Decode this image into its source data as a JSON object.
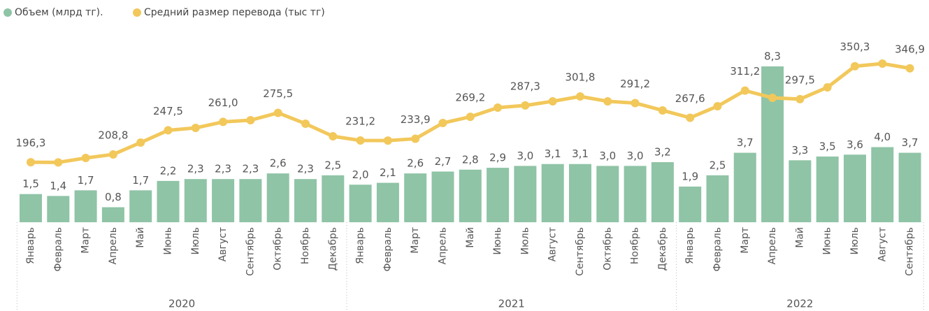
{
  "chart_data": {
    "type": "bar_line",
    "categories": [
      "Январь",
      "Февраль",
      "Март",
      "Апрель",
      "Май",
      "Июнь",
      "Июль",
      "Август",
      "Сентябрь",
      "Октябрь",
      "Ноябрь",
      "Декабрь",
      "Январь",
      "Февраль",
      "Март",
      "Апрель",
      "Май",
      "Июнь",
      "Июль",
      "Август",
      "Сентябрь",
      "Октябрь",
      "Ноябрь",
      "Декабрь",
      "Январь",
      "Февраль",
      "Март",
      "Апрель",
      "Май",
      "Июнь",
      "Июль",
      "Август",
      "Сентябрь"
    ],
    "years": [
      "2020",
      "2021",
      "2022"
    ],
    "series": [
      {
        "name": "Объем (млрд тг).",
        "type": "bar",
        "color": "#8fc4a6",
        "values": [
          1.5,
          1.4,
          1.7,
          0.8,
          1.7,
          2.2,
          2.3,
          2.3,
          2.3,
          2.6,
          2.3,
          2.5,
          2.0,
          2.1,
          2.6,
          2.7,
          2.8,
          2.9,
          3.0,
          3.1,
          3.1,
          3.0,
          3.0,
          3.2,
          1.9,
          2.5,
          3.7,
          8.3,
          3.3,
          3.5,
          3.6,
          4.0,
          3.7
        ],
        "value_labels": [
          "1,5",
          "1,4",
          "1,7",
          "0,8",
          "1,7",
          "2,2",
          "2,3",
          "2,3",
          "2,3",
          "2,6",
          "2,3",
          "2,5",
          "2,0",
          "2,1",
          "2,6",
          "2,7",
          "2,8",
          "2,9",
          "3,0",
          "3,1",
          "3,1",
          "3,0",
          "3,0",
          "3,2",
          "1,9",
          "2,5",
          "3,7",
          "8,3",
          "3,3",
          "3,5",
          "3,6",
          "4,0",
          "3,7"
        ]
      },
      {
        "name": "Средний размер перевода (тыс тг)",
        "type": "line",
        "axis": "y2",
        "color": "#f2c85b",
        "values": [
          196.3,
          196.0,
          203.1,
          208.8,
          227.8,
          247.5,
          251.3,
          261.0,
          263.7,
          275.5,
          258.1,
          237.9,
          231.2,
          231.0,
          233.9,
          259.2,
          269.2,
          283.9,
          287.3,
          294.0,
          301.8,
          294.0,
          291.2,
          279.4,
          267.6,
          286.1,
          311.2,
          299.6,
          297.5,
          316.4,
          350.3,
          354.5,
          346.9
        ],
        "value_labels": [
          "196,3",
          null,
          null,
          "208,8",
          null,
          "247,5",
          null,
          "261,0",
          null,
          "275,5",
          null,
          null,
          "231,2",
          null,
          "233,9",
          null,
          "269,2",
          null,
          "287,3",
          null,
          "301,8",
          null,
          "291,2",
          null,
          "267,6",
          null,
          "311,2",
          null,
          "297,5",
          null,
          "350,3",
          null,
          "346,9"
        ]
      }
    ],
    "ylim": [
      0,
      8.3
    ],
    "y2lim": [
      100,
      350
    ]
  }
}
